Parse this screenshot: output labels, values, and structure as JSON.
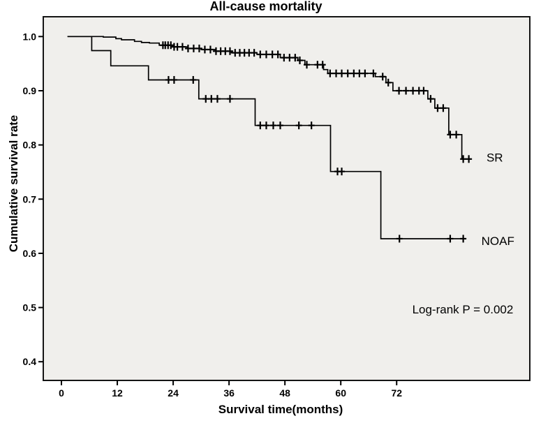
{
  "figure": {
    "title": "All-cause mortality",
    "background_color": "#ffffff",
    "plot_background_color": "#f0efec",
    "line_color": "#000000",
    "border_color": "#141414"
  },
  "chart_data": {
    "type": "line",
    "subtype": "kaplan-meier-step",
    "title": "All-cause mortality",
    "xlabel": "Survival time(months)",
    "ylabel": "Cumulative survival rate",
    "x_ticks": [
      0,
      12,
      24,
      36,
      48,
      60,
      72
    ],
    "y_ticks": [
      1.0,
      0.9,
      0.8,
      0.7,
      0.6,
      0.5,
      0.4
    ],
    "y_tick_labels": [
      "1.0",
      "0.9",
      "0.8",
      "0.7",
      "0.6",
      "0.5",
      "0.4"
    ],
    "xlim": [
      -3.9,
      100.6
    ],
    "ylim": [
      0.3655,
      1.0365
    ],
    "grid": false,
    "legend_position": "inline-curve-labels",
    "annotations": [
      {
        "id": "logrank",
        "text": "Log-rank P = 0.002",
        "month": 86.2,
        "value": 0.497,
        "anchor": "middle",
        "bold": false
      },
      {
        "id": "sr-label",
        "text": "SR",
        "month": 91.3,
        "value": 0.777,
        "anchor": "start",
        "bold": false
      },
      {
        "id": "noaf-label",
        "text": "NOAF",
        "month": 90.2,
        "value": 0.623,
        "anchor": "start",
        "bold": false
      }
    ],
    "series": [
      {
        "name": "SR",
        "start_month": 1.3,
        "end_month": 88.0,
        "steps": [
          [
            1.3,
            1.0
          ],
          [
            9.0,
            0.999
          ],
          [
            11.7,
            0.996
          ],
          [
            12.9,
            0.994
          ],
          [
            15.7,
            0.991
          ],
          [
            17.2,
            0.989
          ],
          [
            18.9,
            0.988
          ],
          [
            21.0,
            0.984
          ],
          [
            24.0,
            0.981
          ],
          [
            27.0,
            0.978
          ],
          [
            30.0,
            0.976
          ],
          [
            33.0,
            0.973
          ],
          [
            36.5,
            0.97
          ],
          [
            42.0,
            0.967
          ],
          [
            47.0,
            0.961
          ],
          [
            50.8,
            0.956
          ],
          [
            52.3,
            0.948
          ],
          [
            56.3,
            0.939
          ],
          [
            57.2,
            0.932
          ],
          [
            67.4,
            0.926
          ],
          [
            69.7,
            0.915
          ],
          [
            71.2,
            0.9
          ],
          [
            78.7,
            0.885
          ],
          [
            80.2,
            0.868
          ],
          [
            83.2,
            0.819
          ],
          [
            86.0,
            0.774
          ]
        ],
        "censor_months": [
          21.8,
          22.3,
          22.9,
          23.5,
          24.2,
          24.9,
          26.0,
          27.2,
          28.4,
          29.6,
          30.8,
          32.0,
          33.2,
          34.2,
          35.2,
          36.2,
          37.3,
          38.3,
          39.3,
          40.3,
          41.4,
          42.7,
          44.0,
          45.3,
          46.5,
          47.8,
          49.0,
          50.2,
          51.2,
          52.7,
          55.0,
          56.1,
          57.7,
          59.0,
          60.2,
          61.5,
          62.8,
          64.0,
          65.2,
          67.0,
          69.0,
          70.2,
          72.5,
          74.0,
          75.5,
          76.8,
          77.8,
          79.3,
          80.8,
          82.0,
          83.5,
          84.8,
          86.3,
          87.5
        ]
      },
      {
        "name": "NOAF",
        "start_month": 1.3,
        "end_month": 86.7,
        "steps": [
          [
            1.3,
            1.0
          ],
          [
            6.5,
            0.974
          ],
          [
            10.6,
            0.946
          ],
          [
            18.7,
            0.92
          ],
          [
            29.5,
            0.885
          ],
          [
            41.6,
            0.836
          ],
          [
            57.8,
            0.751
          ],
          [
            68.6,
            0.627
          ]
        ],
        "censor_months": [
          23.0,
          24.2,
          28.3,
          31.0,
          32.2,
          33.5,
          36.2,
          42.7,
          44.0,
          45.5,
          47.0,
          51.0,
          53.7,
          59.3,
          60.2,
          72.6,
          83.5,
          86.3
        ]
      }
    ]
  }
}
